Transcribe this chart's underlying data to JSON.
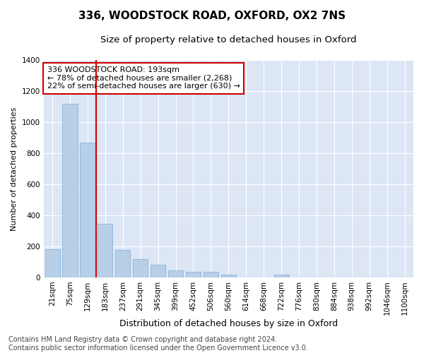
{
  "title1": "336, WOODSTOCK ROAD, OXFORD, OX2 7NS",
  "title2": "Size of property relative to detached houses in Oxford",
  "xlabel": "Distribution of detached houses by size in Oxford",
  "ylabel": "Number of detached properties",
  "categories": [
    "21sqm",
    "75sqm",
    "129sqm",
    "183sqm",
    "237sqm",
    "291sqm",
    "345sqm",
    "399sqm",
    "452sqm",
    "506sqm",
    "560sqm",
    "614sqm",
    "668sqm",
    "722sqm",
    "776sqm",
    "830sqm",
    "884sqm",
    "938sqm",
    "992sqm",
    "1046sqm",
    "1100sqm"
  ],
  "values": [
    180,
    1120,
    870,
    345,
    175,
    120,
    80,
    45,
    35,
    35,
    20,
    0,
    0,
    20,
    0,
    0,
    0,
    0,
    0,
    0,
    0
  ],
  "bar_color": "#b8cfe8",
  "bar_edge_color": "#7aadd4",
  "vline_x_index": 2.5,
  "vline_color": "#cc0000",
  "annotation_text": "336 WOODSTOCK ROAD: 193sqm\n← 78% of detached houses are smaller (2,268)\n22% of semi-detached houses are larger (630) →",
  "annotation_box_facecolor": "#ffffff",
  "annotation_box_edgecolor": "#cc0000",
  "ylim": [
    0,
    1400
  ],
  "yticks": [
    0,
    200,
    400,
    600,
    800,
    1000,
    1200,
    1400
  ],
  "plot_bg_color": "#dce6f5",
  "fig_bg_color": "#ffffff",
  "footer_text": "Contains HM Land Registry data © Crown copyright and database right 2024.\nContains public sector information licensed under the Open Government Licence v3.0.",
  "title1_fontsize": 11,
  "title2_fontsize": 9.5,
  "xlabel_fontsize": 9,
  "ylabel_fontsize": 8,
  "tick_fontsize": 7.5,
  "annotation_fontsize": 8,
  "footer_fontsize": 7
}
